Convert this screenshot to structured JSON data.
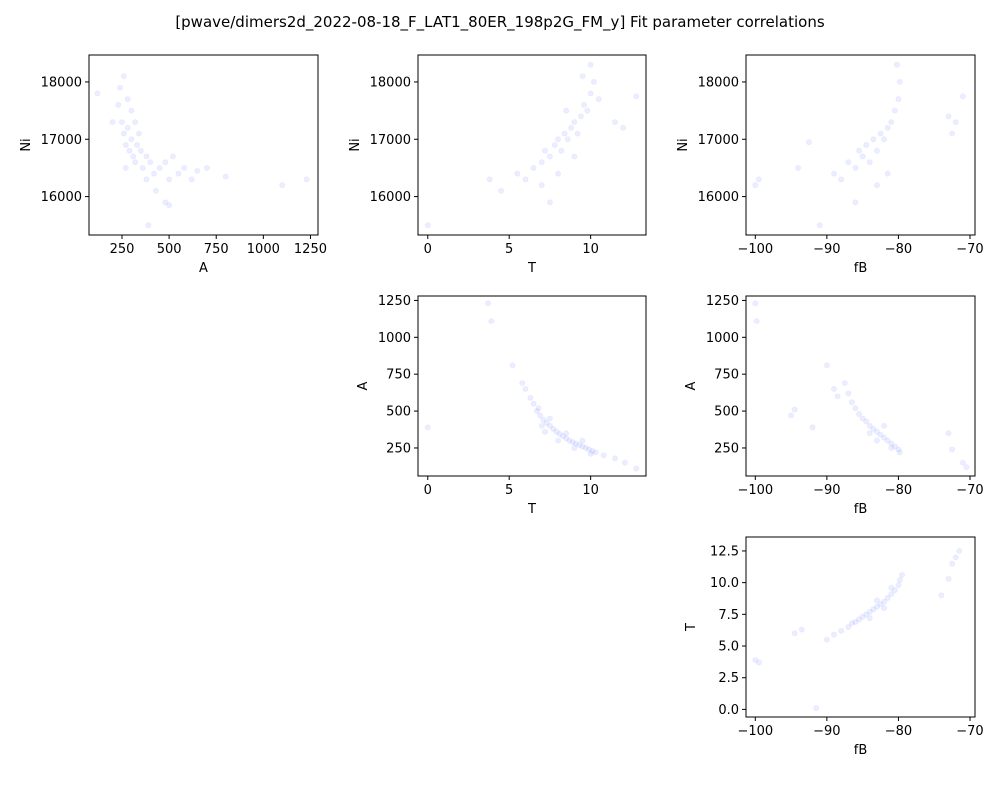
{
  "title": "[pwave/dimers2d_2022-08-18_F_LAT1_80ER_198p2G_FM_y] Fit parameter correlations",
  "style": {
    "point_color": "#6b7bff",
    "point_opacity": 0.13,
    "axes_color": "#000000"
  },
  "chart_data": [
    {
      "id": "A_vs_Ni",
      "type": "scatter",
      "xlabel": "A",
      "ylabel": "Ni",
      "xlim": [
        75,
        1290
      ],
      "ylim": [
        15330,
        18470
      ],
      "xticks": [
        250,
        500,
        750,
        1000,
        1250
      ],
      "xtick_labels": [
        "250",
        "500",
        "750",
        "1000",
        "1250"
      ],
      "yticks": [
        16000,
        17000,
        18000
      ],
      "ytick_labels": [
        "16000",
        "17000",
        "18000"
      ],
      "points": [
        [
          230,
          17600
        ],
        [
          250,
          17300
        ],
        [
          260,
          17100
        ],
        [
          270,
          16900
        ],
        [
          280,
          17200
        ],
        [
          290,
          16800
        ],
        [
          300,
          17000
        ],
        [
          310,
          16700
        ],
        [
          320,
          16600
        ],
        [
          330,
          16900
        ],
        [
          340,
          17100
        ],
        [
          350,
          16800
        ],
        [
          360,
          16500
        ],
        [
          380,
          16700
        ],
        [
          400,
          16600
        ],
        [
          420,
          16400
        ],
        [
          450,
          16500
        ],
        [
          480,
          16600
        ],
        [
          500,
          16300
        ],
        [
          520,
          16700
        ],
        [
          550,
          16400
        ],
        [
          580,
          16500
        ],
        [
          620,
          16300
        ],
        [
          650,
          16450
        ],
        [
          700,
          16500
        ],
        [
          800,
          16350
        ],
        [
          1100,
          16200
        ],
        [
          1230,
          16300
        ],
        [
          240,
          17900
        ],
        [
          260,
          18100
        ],
        [
          280,
          17700
        ],
        [
          300,
          17500
        ],
        [
          270,
          16500
        ],
        [
          320,
          17300
        ],
        [
          380,
          16300
        ],
        [
          430,
          16100
        ],
        [
          480,
          15900
        ],
        [
          500,
          15850
        ],
        [
          390,
          15500
        ],
        [
          120,
          17800
        ],
        [
          200,
          17300
        ]
      ]
    },
    {
      "id": "T_vs_Ni",
      "type": "scatter",
      "xlabel": "T",
      "ylabel": "Ni",
      "xlim": [
        -0.6,
        13.4
      ],
      "ylim": [
        15330,
        18470
      ],
      "xticks": [
        0,
        5,
        10
      ],
      "xtick_labels": [
        "0",
        "5",
        "10"
      ],
      "yticks": [
        16000,
        17000,
        18000
      ],
      "ytick_labels": [
        "16000",
        "17000",
        "18000"
      ],
      "points": [
        [
          0,
          15500
        ],
        [
          3.8,
          16300
        ],
        [
          4.5,
          16100
        ],
        [
          5.5,
          16400
        ],
        [
          6,
          16300
        ],
        [
          6.5,
          16500
        ],
        [
          7,
          16600
        ],
        [
          7.2,
          16800
        ],
        [
          7.5,
          16700
        ],
        [
          7.8,
          16900
        ],
        [
          8,
          17000
        ],
        [
          8.2,
          16800
        ],
        [
          8.4,
          17100
        ],
        [
          8.6,
          17000
        ],
        [
          8.8,
          17200
        ],
        [
          9,
          17300
        ],
        [
          9.2,
          17100
        ],
        [
          9.4,
          17400
        ],
        [
          9.6,
          17600
        ],
        [
          9.8,
          17500
        ],
        [
          10,
          17800
        ],
        [
          10.2,
          18000
        ],
        [
          10.5,
          17700
        ],
        [
          11.5,
          17300
        ],
        [
          12,
          17200
        ],
        [
          12.8,
          17750
        ],
        [
          7,
          16200
        ],
        [
          7.5,
          15900
        ],
        [
          8,
          16400
        ],
        [
          9,
          16700
        ],
        [
          8.5,
          17500
        ],
        [
          9.5,
          18100
        ],
        [
          10,
          18300
        ]
      ]
    },
    {
      "id": "fB_vs_Ni",
      "type": "scatter",
      "xlabel": "fB",
      "ylabel": "Ni",
      "xlim": [
        -101.3,
        -69.3
      ],
      "ylim": [
        15330,
        18470
      ],
      "xticks": [
        -100,
        -90,
        -80,
        -70
      ],
      "xtick_labels": [
        "−100",
        "−90",
        "−80",
        "−70"
      ],
      "yticks": [
        16000,
        17000,
        18000
      ],
      "ytick_labels": [
        "16000",
        "17000",
        "18000"
      ],
      "points": [
        [
          -100,
          16200
        ],
        [
          -99.5,
          16300
        ],
        [
          -94,
          16500
        ],
        [
          -92.5,
          16950
        ],
        [
          -91,
          15500
        ],
        [
          -89,
          16400
        ],
        [
          -88,
          16300
        ],
        [
          -87,
          16600
        ],
        [
          -86,
          16500
        ],
        [
          -85.5,
          16800
        ],
        [
          -85,
          16700
        ],
        [
          -84.5,
          16900
        ],
        [
          -84,
          16600
        ],
        [
          -83.5,
          17000
        ],
        [
          -83,
          16800
        ],
        [
          -82.5,
          17100
        ],
        [
          -82,
          17000
        ],
        [
          -81.5,
          17200
        ],
        [
          -81,
          17300
        ],
        [
          -80.5,
          17500
        ],
        [
          -80,
          17700
        ],
        [
          -79.8,
          18000
        ],
        [
          -80.2,
          18300
        ],
        [
          -81.5,
          16400
        ],
        [
          -83,
          16200
        ],
        [
          -86,
          15900
        ],
        [
          -73,
          17400
        ],
        [
          -72,
          17300
        ],
        [
          -71,
          17750
        ],
        [
          -72.5,
          17100
        ]
      ]
    },
    {
      "id": "T_vs_A",
      "type": "scatter",
      "xlabel": "T",
      "ylabel": "A",
      "xlim": [
        -0.6,
        13.4
      ],
      "ylim": [
        60,
        1280
      ],
      "xticks": [
        0,
        5,
        10
      ],
      "xtick_labels": [
        "0",
        "5",
        "10"
      ],
      "yticks": [
        250,
        500,
        750,
        1000,
        1250
      ],
      "ytick_labels": [
        "250",
        "500",
        "750",
        "1000",
        "1250"
      ],
      "points": [
        [
          0,
          390
        ],
        [
          3.7,
          1230
        ],
        [
          3.9,
          1110
        ],
        [
          5.2,
          810
        ],
        [
          5.8,
          690
        ],
        [
          6,
          650
        ],
        [
          6.3,
          590
        ],
        [
          6.5,
          550
        ],
        [
          6.7,
          500
        ],
        [
          6.9,
          470
        ],
        [
          7.1,
          440
        ],
        [
          7.3,
          420
        ],
        [
          7.5,
          400
        ],
        [
          7.7,
          380
        ],
        [
          7.9,
          360
        ],
        [
          8.1,
          345
        ],
        [
          8.3,
          330
        ],
        [
          8.5,
          315
        ],
        [
          8.7,
          300
        ],
        [
          8.9,
          290
        ],
        [
          9.1,
          280
        ],
        [
          9.3,
          270
        ],
        [
          9.5,
          260
        ],
        [
          9.7,
          250
        ],
        [
          9.9,
          240
        ],
        [
          10.1,
          230
        ],
        [
          10.3,
          220
        ],
        [
          10.8,
          200
        ],
        [
          11.5,
          180
        ],
        [
          12.1,
          150
        ],
        [
          12.8,
          110
        ],
        [
          7,
          400
        ],
        [
          7.5,
          450
        ],
        [
          8,
          300
        ],
        [
          8.5,
          350
        ],
        [
          9,
          250
        ],
        [
          9.5,
          300
        ],
        [
          10,
          210
        ],
        [
          6.8,
          520
        ],
        [
          7.2,
          360
        ]
      ]
    },
    {
      "id": "fB_vs_A",
      "type": "scatter",
      "xlabel": "fB",
      "ylabel": "A",
      "xlim": [
        -101.3,
        -69.3
      ],
      "ylim": [
        60,
        1280
      ],
      "xticks": [
        -100,
        -90,
        -80,
        -70
      ],
      "xtick_labels": [
        "−100",
        "−90",
        "−80",
        "−70"
      ],
      "yticks": [
        250,
        500,
        750,
        1000,
        1250
      ],
      "ytick_labels": [
        "250",
        "500",
        "750",
        "1000",
        "1250"
      ],
      "points": [
        [
          -100,
          1230
        ],
        [
          -99.8,
          1110
        ],
        [
          -95,
          470
        ],
        [
          -94.5,
          510
        ],
        [
          -92,
          390
        ],
        [
          -90,
          810
        ],
        [
          -89,
          650
        ],
        [
          -88.5,
          600
        ],
        [
          -87.5,
          690
        ],
        [
          -87,
          620
        ],
        [
          -86.5,
          560
        ],
        [
          -86,
          520
        ],
        [
          -85.5,
          480
        ],
        [
          -85,
          450
        ],
        [
          -84.5,
          430
        ],
        [
          -84,
          400
        ],
        [
          -83.5,
          380
        ],
        [
          -83,
          360
        ],
        [
          -82.5,
          340
        ],
        [
          -82,
          320
        ],
        [
          -81.5,
          300
        ],
        [
          -81,
          280
        ],
        [
          -80.5,
          260
        ],
        [
          -80,
          240
        ],
        [
          -79.8,
          220
        ],
        [
          -84,
          350
        ],
        [
          -82,
          400
        ],
        [
          -81,
          250
        ],
        [
          -83,
          300
        ],
        [
          -73,
          350
        ],
        [
          -72.5,
          240
        ],
        [
          -71,
          150
        ],
        [
          -70.5,
          120
        ]
      ]
    },
    {
      "id": "fB_vs_T",
      "type": "scatter",
      "xlabel": "fB",
      "ylabel": "T",
      "xlim": [
        -101.3,
        -69.3
      ],
      "ylim": [
        -0.6,
        13.6
      ],
      "xticks": [
        -100,
        -90,
        -80,
        -70
      ],
      "xtick_labels": [
        "−100",
        "−90",
        "−80",
        "−70"
      ],
      "yticks": [
        0.0,
        2.5,
        5.0,
        7.5,
        10.0,
        12.5
      ],
      "ytick_labels": [
        "0.0",
        "2.5",
        "5.0",
        "7.5",
        "10.0",
        "12.5"
      ],
      "points": [
        [
          -100,
          3.9
        ],
        [
          -99.5,
          3.7
        ],
        [
          -94.5,
          6.0
        ],
        [
          -93.5,
          6.3
        ],
        [
          -91.5,
          0.1
        ],
        [
          -90,
          5.5
        ],
        [
          -89,
          5.9
        ],
        [
          -88,
          6.2
        ],
        [
          -87,
          6.5
        ],
        [
          -86.5,
          6.8
        ],
        [
          -86,
          6.9
        ],
        [
          -85.5,
          7.1
        ],
        [
          -85,
          7.3
        ],
        [
          -84.5,
          7.5
        ],
        [
          -84,
          7.7
        ],
        [
          -83.5,
          7.9
        ],
        [
          -83,
          8.1
        ],
        [
          -82.5,
          8.3
        ],
        [
          -82,
          8.5
        ],
        [
          -81.5,
          8.8
        ],
        [
          -81,
          9.1
        ],
        [
          -80.5,
          9.4
        ],
        [
          -80,
          9.8
        ],
        [
          -79.8,
          10.2
        ],
        [
          -79.5,
          10.6
        ],
        [
          -84,
          7.2
        ],
        [
          -82,
          8.0
        ],
        [
          -81,
          9.6
        ],
        [
          -83,
          8.6
        ],
        [
          -72,
          12.0
        ],
        [
          -72.5,
          11.5
        ],
        [
          -71.5,
          12.5
        ],
        [
          -73,
          10.3
        ],
        [
          -74,
          9.0
        ]
      ]
    }
  ]
}
